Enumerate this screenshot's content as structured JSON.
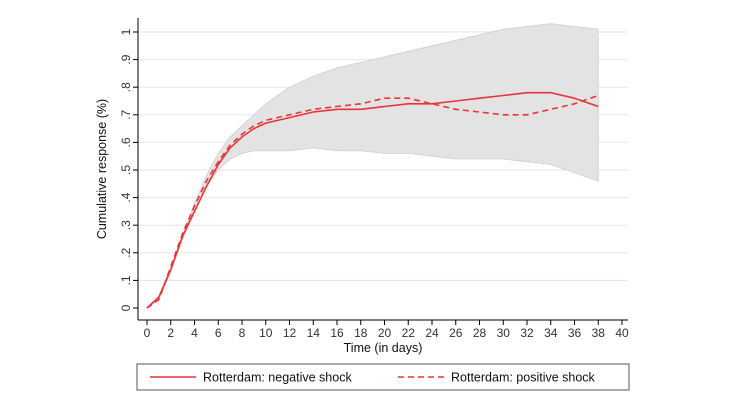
{
  "colors": {
    "series": "#e8353a",
    "band": "#e3e3e3",
    "band_edge": "#cfcfcf",
    "grid": "#e6e6e6",
    "axis": "#000000",
    "legend_border": "#555555"
  },
  "chart_data": {
    "type": "line",
    "title": "",
    "xlabel": "Time (in days)",
    "ylabel": "Cumulative response (%)",
    "xlim": [
      0,
      40
    ],
    "ylim": [
      0,
      1
    ],
    "x_ticks": [
      0,
      2,
      4,
      6,
      8,
      10,
      12,
      14,
      16,
      18,
      20,
      22,
      24,
      26,
      28,
      30,
      32,
      34,
      36,
      38,
      40
    ],
    "y_ticks": [
      0,
      0.1,
      0.2,
      0.3,
      0.4,
      0.5,
      0.6,
      0.7,
      0.8,
      0.9,
      1
    ],
    "y_tick_labels": [
      "0",
      ".1",
      ".2",
      ".3",
      ".4",
      ".5",
      ".6",
      ".7",
      ".8",
      ".9",
      "1"
    ],
    "grid": "horizontal",
    "legend_position": "bottom",
    "band": {
      "x": [
        0,
        1,
        2,
        3,
        4,
        5,
        6,
        7,
        8,
        9,
        10,
        12,
        14,
        16,
        18,
        20,
        22,
        24,
        26,
        28,
        30,
        32,
        34,
        36,
        38
      ],
      "upper": [
        0.0,
        0.04,
        0.14,
        0.26,
        0.38,
        0.48,
        0.56,
        0.62,
        0.66,
        0.7,
        0.74,
        0.8,
        0.84,
        0.87,
        0.89,
        0.91,
        0.93,
        0.95,
        0.97,
        0.99,
        1.01,
        1.02,
        1.03,
        1.02,
        1.01
      ],
      "lower": [
        0.0,
        0.03,
        0.13,
        0.25,
        0.35,
        0.44,
        0.5,
        0.54,
        0.56,
        0.57,
        0.57,
        0.57,
        0.58,
        0.57,
        0.57,
        0.56,
        0.56,
        0.55,
        0.54,
        0.54,
        0.54,
        0.53,
        0.52,
        0.49,
        0.46
      ]
    },
    "series": [
      {
        "name": "Rotterdam: negative shock",
        "style": "solid",
        "x": [
          0,
          1,
          2,
          3,
          4,
          5,
          6,
          7,
          8,
          9,
          10,
          12,
          14,
          16,
          18,
          20,
          22,
          24,
          26,
          28,
          30,
          32,
          34,
          36,
          38
        ],
        "values": [
          0.0,
          0.04,
          0.14,
          0.26,
          0.35,
          0.44,
          0.52,
          0.58,
          0.62,
          0.65,
          0.67,
          0.69,
          0.71,
          0.72,
          0.72,
          0.73,
          0.74,
          0.74,
          0.75,
          0.76,
          0.77,
          0.78,
          0.78,
          0.76,
          0.73
        ]
      },
      {
        "name": "Rotterdam: positive shock",
        "style": "dashed",
        "x": [
          0,
          1,
          2,
          3,
          4,
          5,
          6,
          7,
          8,
          9,
          10,
          12,
          14,
          16,
          18,
          20,
          22,
          24,
          26,
          28,
          30,
          32,
          34,
          36,
          38
        ],
        "values": [
          0.0,
          0.03,
          0.15,
          0.27,
          0.37,
          0.46,
          0.53,
          0.59,
          0.63,
          0.66,
          0.68,
          0.7,
          0.72,
          0.73,
          0.74,
          0.76,
          0.76,
          0.74,
          0.72,
          0.71,
          0.7,
          0.7,
          0.72,
          0.74,
          0.77
        ]
      }
    ]
  }
}
